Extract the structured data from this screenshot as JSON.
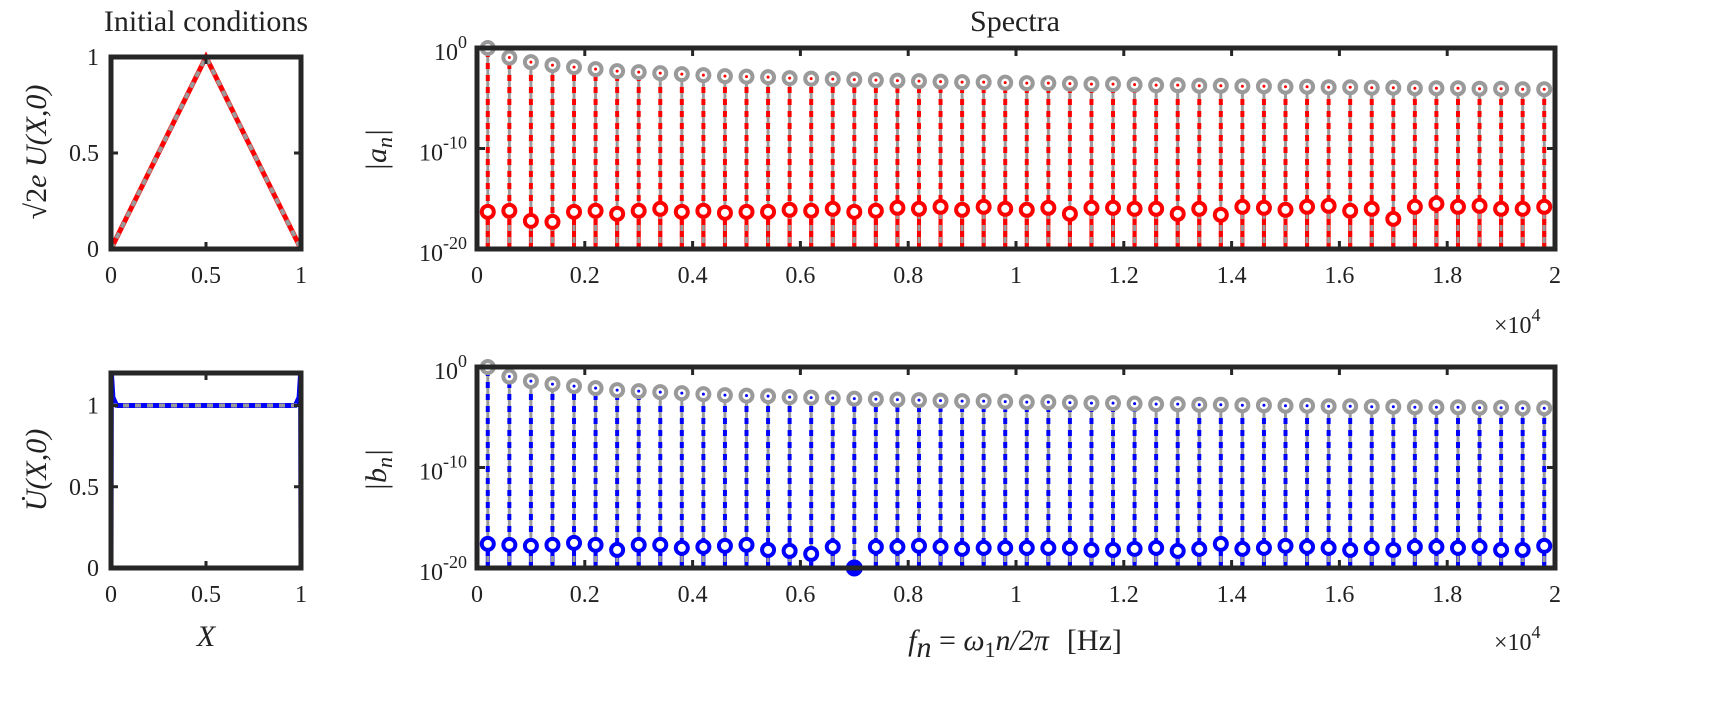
{
  "colors": {
    "axis": "#262626",
    "gray": "#9a9a9a",
    "red": "#ff0000",
    "blue": "#0000ff"
  },
  "titles": {
    "left": "Initial conditions",
    "right": "Spectra"
  },
  "labels": {
    "ylabel_u": "√2e U(X,0)",
    "ylabel_u_lead": "√2",
    "ylabel_u_e": "e",
    "ylabel_u_U": "U",
    "ylabel_u_args": "(X,0)",
    "ylabel_udot": "U̇(X,0)",
    "ylabel_udot_U": "U̇",
    "ylabel_udot_args": "(X,0)",
    "xlabel_x": "X",
    "ylabel_a": "|a",
    "ylabel_a_sub": "n",
    "ylabel_a_end": "|",
    "ylabel_b": "|b",
    "ylabel_b_sub": "n",
    "ylabel_b_end": "|",
    "xlabel_f_f": "f",
    "xlabel_f_n": "n",
    "xlabel_f_eq": " = ",
    "xlabel_f_omega": "ω",
    "xlabel_f_1": "1",
    "xlabel_f_rest": "n/2π",
    "xlabel_f_unit": "[Hz]",
    "exp_times": "×10",
    "exp_power": "4"
  },
  "ticks": {
    "ic_x": [
      "0",
      "0.5",
      "1"
    ],
    "ic_y": [
      "0",
      "0.5",
      "1"
    ],
    "spec_x": [
      "0",
      "0.2",
      "0.4",
      "0.6",
      "0.8",
      "1",
      "1.2",
      "1.4",
      "1.6",
      "1.8",
      "2"
    ],
    "spec_y_base": [
      "10",
      "10",
      "10"
    ],
    "spec_y_exp": [
      "0",
      "-10",
      "-20"
    ]
  },
  "chart_data": [
    {
      "type": "line",
      "panel": "initial-displacement",
      "xlim": [
        0,
        1
      ],
      "ylim": [
        0,
        1
      ],
      "series": [
        {
          "color": "red",
          "style": "solid",
          "x": [
            0,
            0.5,
            1
          ],
          "y": [
            0,
            1,
            0
          ]
        },
        {
          "color": "gray",
          "style": "dotted",
          "x": [
            0,
            0.5,
            1
          ],
          "y": [
            0,
            1,
            0
          ]
        }
      ]
    },
    {
      "type": "line",
      "panel": "initial-velocity",
      "xlim": [
        0,
        1
      ],
      "ylim": [
        0,
        1.2
      ],
      "series": [
        {
          "color": "blue",
          "style": "solid",
          "x": [
            0,
            0.002,
            0.01,
            0.03,
            0.97,
            0.99,
            0.998,
            1
          ],
          "y": [
            0,
            1.2,
            1.05,
            1.0,
            1.0,
            1.05,
            1.2,
            0
          ]
        },
        {
          "color": "gray",
          "style": "dotted",
          "x": [
            0,
            1
          ],
          "y": [
            1,
            1
          ]
        }
      ]
    },
    {
      "type": "stem",
      "panel": "spectrum-a",
      "yscale": "log",
      "xlim": [
        0,
        20000
      ],
      "ylim": [
        1e-20,
        1
      ],
      "x_exponent": 4,
      "x": [
        200,
        600,
        1000,
        1400,
        1800,
        2200,
        2600,
        3000,
        3400,
        3800,
        4200,
        4600,
        5000,
        5400,
        5800,
        6200,
        6600,
        7000,
        7400,
        7800,
        8200,
        8600,
        9000,
        9400,
        9800,
        10200,
        10600,
        11000,
        11400,
        11800,
        12200,
        12600,
        13000,
        13400,
        13800,
        14200,
        14600,
        15000,
        15400,
        15800,
        16200,
        16600,
        17000,
        17400,
        17800,
        18200,
        18600,
        19000,
        19400,
        19800
      ],
      "series": [
        {
          "color": "gray",
          "log10_values": [
            0,
            -0.95,
            -1.4,
            -1.7,
            -1.9,
            -2.1,
            -2.3,
            -2.4,
            -2.5,
            -2.6,
            -2.7,
            -2.8,
            -2.85,
            -2.9,
            -3.0,
            -3.05,
            -3.1,
            -3.15,
            -3.2,
            -3.25,
            -3.3,
            -3.35,
            -3.4,
            -3.4,
            -3.45,
            -3.5,
            -3.5,
            -3.55,
            -3.6,
            -3.6,
            -3.65,
            -3.7,
            -3.7,
            -3.75,
            -3.75,
            -3.8,
            -3.8,
            -3.85,
            -3.85,
            -3.9,
            -3.9,
            -3.95,
            -3.95,
            -4.0,
            -4.0,
            -4.0,
            -4.05,
            -4.05,
            -4.1,
            -4.1
          ]
        },
        {
          "color": "red",
          "log10_values": [
            -16.3,
            -16.2,
            -17.2,
            -17.3,
            -16.3,
            -16.2,
            -16.5,
            -16.2,
            -16.0,
            -16.3,
            -16.2,
            -16.4,
            -16.3,
            -16.3,
            -16.1,
            -16.2,
            -16.0,
            -16.3,
            -16.2,
            -15.9,
            -16.0,
            -15.8,
            -16.1,
            -15.8,
            -16.0,
            -16.1,
            -15.9,
            -16.5,
            -15.9,
            -15.9,
            -16.0,
            -16.0,
            -16.5,
            -16.0,
            -16.6,
            -15.8,
            -15.9,
            -16.1,
            -15.8,
            -15.7,
            -16.2,
            -16.0,
            -17.0,
            -15.8,
            -15.5,
            -15.8,
            -15.7,
            -16.0,
            -16.0,
            -15.8
          ]
        }
      ]
    },
    {
      "type": "stem",
      "panel": "spectrum-b",
      "yscale": "log",
      "xlim": [
        0,
        20000
      ],
      "ylim": [
        1e-20,
        1
      ],
      "x_exponent": 4,
      "x": [
        200,
        600,
        1000,
        1400,
        1800,
        2200,
        2600,
        3000,
        3400,
        3800,
        4200,
        4600,
        5000,
        5400,
        5800,
        6200,
        6600,
        7000,
        7400,
        7800,
        8200,
        8600,
        9000,
        9400,
        9800,
        10200,
        10600,
        11000,
        11400,
        11800,
        12200,
        12600,
        13000,
        13400,
        13800,
        14200,
        14600,
        15000,
        15400,
        15800,
        16200,
        16600,
        17000,
        17400,
        17800,
        18200,
        18600,
        19000,
        19400,
        19800
      ],
      "series": [
        {
          "color": "gray",
          "log10_values": [
            0,
            -0.95,
            -1.4,
            -1.7,
            -1.9,
            -2.1,
            -2.3,
            -2.4,
            -2.5,
            -2.6,
            -2.7,
            -2.8,
            -2.85,
            -2.9,
            -3.0,
            -3.05,
            -3.1,
            -3.15,
            -3.2,
            -3.25,
            -3.3,
            -3.35,
            -3.4,
            -3.4,
            -3.45,
            -3.5,
            -3.5,
            -3.55,
            -3.6,
            -3.6,
            -3.65,
            -3.7,
            -3.7,
            -3.75,
            -3.75,
            -3.8,
            -3.8,
            -3.85,
            -3.85,
            -3.9,
            -3.9,
            -3.95,
            -3.95,
            -4.0,
            -4.0,
            -4.0,
            -4.05,
            -4.05,
            -4.1,
            -4.1
          ]
        },
        {
          "color": "blue",
          "log10_values": [
            -17.6,
            -17.7,
            -17.8,
            -17.7,
            -17.5,
            -17.7,
            -18.2,
            -17.7,
            -17.7,
            -18.0,
            -17.9,
            -17.8,
            -17.7,
            -18.2,
            -18.3,
            -18.6,
            -17.9,
            -20.0,
            -17.9,
            -17.9,
            -17.8,
            -17.9,
            -18.1,
            -18.0,
            -18.0,
            -18.0,
            -18.0,
            -18.0,
            -18.2,
            -18.2,
            -18.1,
            -18.0,
            -18.3,
            -18.1,
            -17.6,
            -18.1,
            -18.0,
            -17.8,
            -17.9,
            -18.0,
            -18.2,
            -18.0,
            -18.2,
            -17.9,
            -17.9,
            -18.0,
            -17.9,
            -18.2,
            -18.2,
            -17.8
          ]
        }
      ]
    }
  ]
}
